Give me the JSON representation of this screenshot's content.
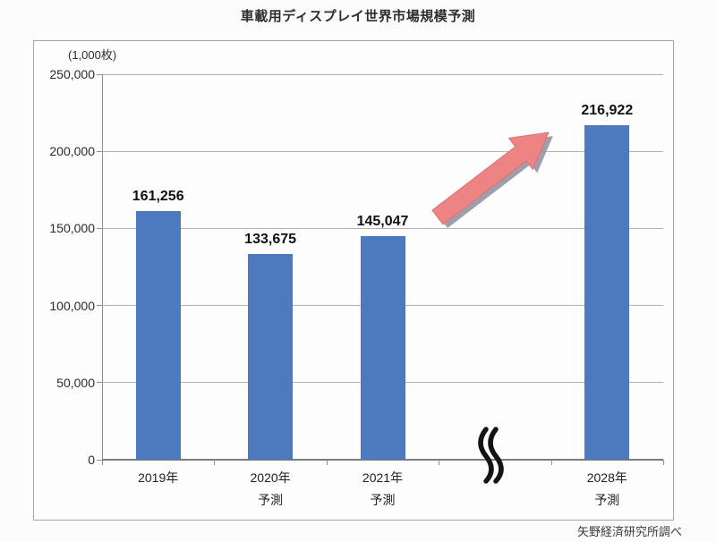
{
  "title": "車載用ディスプレイ世界市場規模予測",
  "unit_label": "(1,000枚)",
  "source": "矢野経済研究所調べ",
  "chart_data": {
    "type": "bar",
    "title": "車載用ディスプレイ世界市場規模予測",
    "unit": "(1,000枚)",
    "categories": [
      "2019年",
      "2020年\n予測",
      "2021年\n予測",
      "2028年\n予測"
    ],
    "values": [
      161256,
      133675,
      145047,
      216922
    ],
    "value_labels": [
      "161,256",
      "133,675",
      "145,047",
      "216,922"
    ],
    "bar_slots": [
      0,
      1,
      2,
      4
    ],
    "n_slots": 5,
    "axis_break_slot": 3,
    "ylim": [
      0,
      250000
    ],
    "ytick_step": 50000,
    "ytick_labels": [
      "0",
      "50,000",
      "100,000",
      "150,000",
      "200,000",
      "250,000"
    ],
    "grid": true,
    "legend": "none",
    "annotations": [
      "growth-arrow",
      "x-axis-break"
    ],
    "colors": {
      "bar": "#4d79be",
      "arrow": "#ee8383",
      "arrow_shadow": "#928c9b",
      "gridline": "#b3b3b3",
      "axis": "#8f8f8f"
    }
  }
}
